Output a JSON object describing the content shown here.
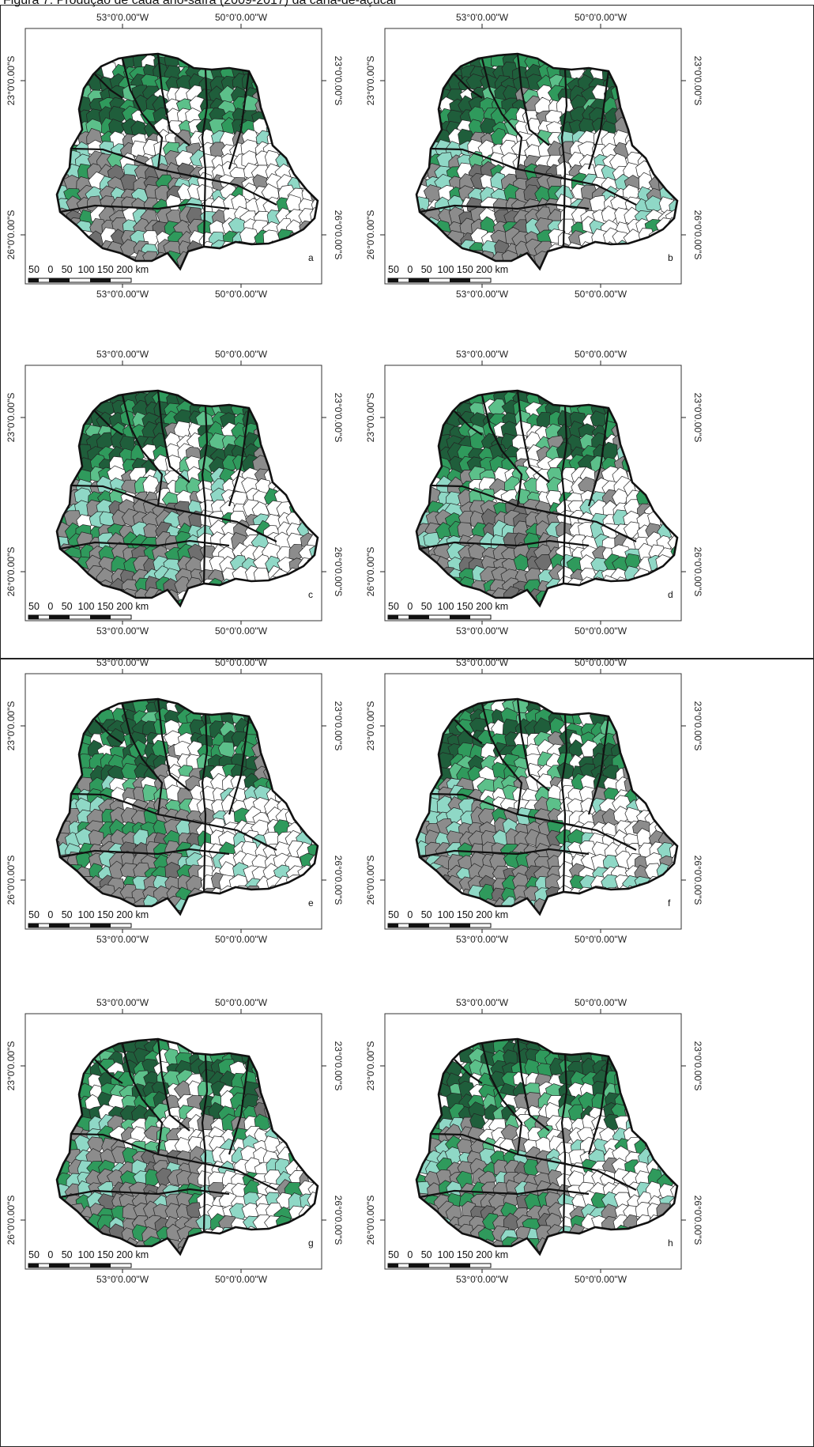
{
  "figure": {
    "title": "Figura 7. Produção de cada ano-safra (2009-2017) da cana-de-açúcar"
  },
  "axes": {
    "lon_labels": [
      "53°0'0.00\"W",
      "50°0'0.00\"W"
    ],
    "lat_labels": [
      "23°0'0.00\"S",
      "26°0'0.00\"S"
    ]
  },
  "scale_bar": {
    "label": "50   0   50  100 150 200 km"
  },
  "palette": {
    "dark_green": "#1f5e3b",
    "green": "#2f9a5c",
    "light_green": "#5cc08a",
    "aqua": "#8fd8c6",
    "gray": "#8c8c8c",
    "dark_gray": "#6f6f6f",
    "white": "#ffffff",
    "border": "#111111"
  },
  "panels": [
    {
      "letter": "a"
    },
    {
      "letter": "b"
    },
    {
      "letter": "c"
    },
    {
      "letter": "d"
    },
    {
      "letter": "e"
    },
    {
      "letter": "f"
    },
    {
      "letter": "g"
    },
    {
      "letter": "h"
    }
  ]
}
